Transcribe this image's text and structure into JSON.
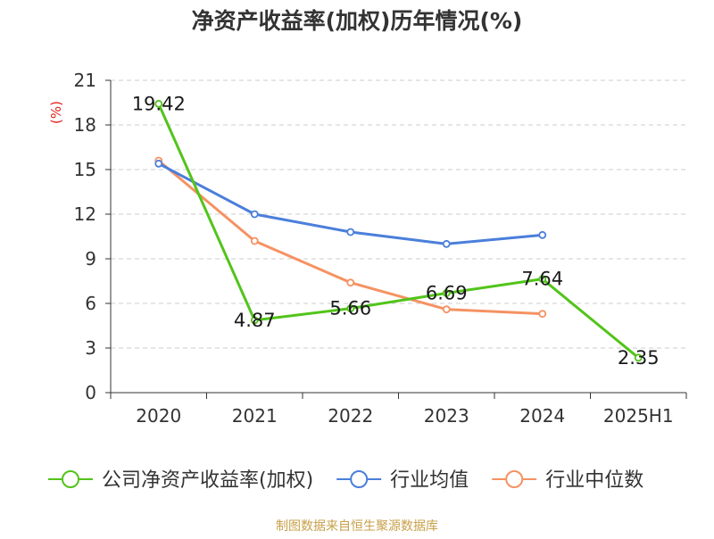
{
  "chart_data": {
    "type": "line",
    "title": "净资产收益率(加权)历年情况(%)",
    "ylabel": "(%)",
    "xlabel": "",
    "categories": [
      "2020",
      "2021",
      "2022",
      "2023",
      "2024",
      "2025H1"
    ],
    "ylim": [
      0,
      21
    ],
    "yticks": [
      0,
      3,
      6,
      9,
      12,
      15,
      18,
      21
    ],
    "grid": true,
    "legend_position": "bottom",
    "series": [
      {
        "name": "公司净资产收益率(加权)",
        "color": "#52c41a",
        "values": [
          19.42,
          4.87,
          5.66,
          6.69,
          7.64,
          2.35
        ],
        "labels": [
          "19.42",
          "4.87",
          "5.66",
          "6.69",
          "7.64",
          "2.35"
        ]
      },
      {
        "name": "行业均值",
        "color": "#4a7fdb",
        "values": [
          15.4,
          12.0,
          10.8,
          10.0,
          10.6,
          null
        ]
      },
      {
        "name": "行业中位数",
        "color": "#f59262",
        "values": [
          15.6,
          10.2,
          7.4,
          5.6,
          5.3,
          null
        ]
      }
    ],
    "source": "制图数据来自恒生聚源数据库"
  }
}
